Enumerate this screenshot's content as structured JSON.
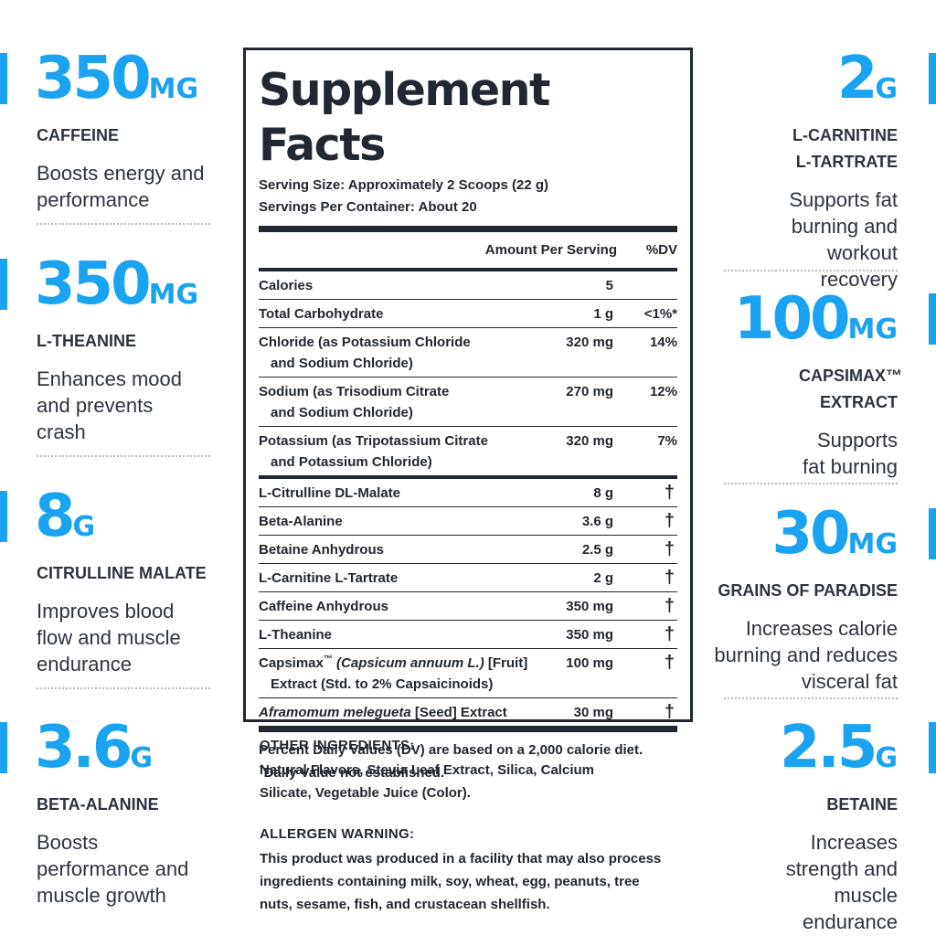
{
  "colors": {
    "accent": "#1aa3f0",
    "text": "#222831",
    "divider": "#b8bcc2"
  },
  "left": [
    {
      "amount": "350",
      "unit": "MG",
      "name": "CAFFEINE",
      "desc": "Boosts energy and performance"
    },
    {
      "amount": "350",
      "unit": "MG",
      "name": "L-THEANINE",
      "desc": "Enhances mood and prevents crash"
    },
    {
      "amount": "8",
      "unit": "G",
      "name": "CITRULLINE MALATE",
      "desc": "Improves blood flow and muscle endurance"
    },
    {
      "amount": "3.6",
      "unit": "G",
      "name": "BETA-ALANINE",
      "desc": "Boosts performance and muscle growth"
    }
  ],
  "right": [
    {
      "amount": "2",
      "unit": "G",
      "name": "L-CARNITINE L-TARTRATE",
      "desc": "Supports fat burning and workout recovery"
    },
    {
      "amount": "100",
      "unit": "MG",
      "name": "CAPSIMAX™ EXTRACT",
      "desc": "Supports fat burning"
    },
    {
      "amount": "30",
      "unit": "MG",
      "name": "GRAINS OF PARADISE",
      "desc": "Increases calorie burning and reduces visceral fat"
    },
    {
      "amount": "2.5",
      "unit": "G",
      "name": "BETAINE",
      "desc": "Increases strength and muscle endurance"
    }
  ],
  "facts": {
    "title": "Supplement Facts",
    "serving_size": "Serving Size: Approximately 2 Scoops (22 g)",
    "servings_per_container": "Servings Per Container: About 20",
    "header_amount": "Amount Per Serving",
    "header_dv": "%DV",
    "group1": [
      {
        "name": "Calories",
        "amount": "5",
        "dv": ""
      },
      {
        "name": "Total Carbohydrate",
        "amount": "1 g",
        "dv": "<1%*"
      },
      {
        "name": "Chloride (as Potassium Chloride",
        "name2": "and Sodium Chloride)",
        "amount": "320 mg",
        "dv": "14%"
      },
      {
        "name": "Sodium (as Trisodium Citrate",
        "name2": "and Sodium Chloride)",
        "amount": "270 mg",
        "dv": "12%"
      },
      {
        "name": "Potassium (as Tripotassium Citrate",
        "name2": "and Potassium Chloride)",
        "amount": "320 mg",
        "dv": "7%"
      }
    ],
    "group2": [
      {
        "name": "L-Citrulline DL-Malate",
        "amount": "8 g",
        "dv": "†"
      },
      {
        "name": "Beta-Alanine",
        "amount": "3.6 g",
        "dv": "†"
      },
      {
        "name": "Betaine Anhydrous",
        "amount": "2.5 g",
        "dv": "†"
      },
      {
        "name": "L-Carnitine L-Tartrate",
        "amount": "2 g",
        "dv": "†"
      },
      {
        "name": "Caffeine Anhydrous",
        "amount": "350 mg",
        "dv": "†"
      },
      {
        "name": "L-Theanine",
        "amount": "350 mg",
        "dv": "†"
      }
    ],
    "capsimax": {
      "prefix": "Capsimax",
      "tm": "™",
      "italic": " (Capsicum annuum L.)",
      "suffix": " [Fruit]",
      "line2": "Extract (Std. to 2% Capsaicinoids)",
      "amount": "100 mg",
      "dv": "†"
    },
    "aframomum": {
      "italic": "Aframomum melegueta",
      "rest": " [Seed] Extract",
      "amount": "30 mg",
      "dv": "†"
    },
    "footnote1": "Percent Daily Values (DV) are based on a 2,000 calorie diet.",
    "footnote2_mark": "†",
    "footnote2": "Daily Value not established."
  },
  "other_ingredients": {
    "heading": "OTHER INGREDIENTS:",
    "text": "Natural Flavors, Stevia Leaf Extract, Silica, Calcium Silicate, Vegetable Juice (Color)."
  },
  "allergen": {
    "heading": "ALLERGEN WARNING:",
    "text": "This product was produced in a facility that may also process ingredients containing milk, soy, wheat, egg, peanuts, tree nuts, sesame, fish, and crustacean shellfish."
  }
}
